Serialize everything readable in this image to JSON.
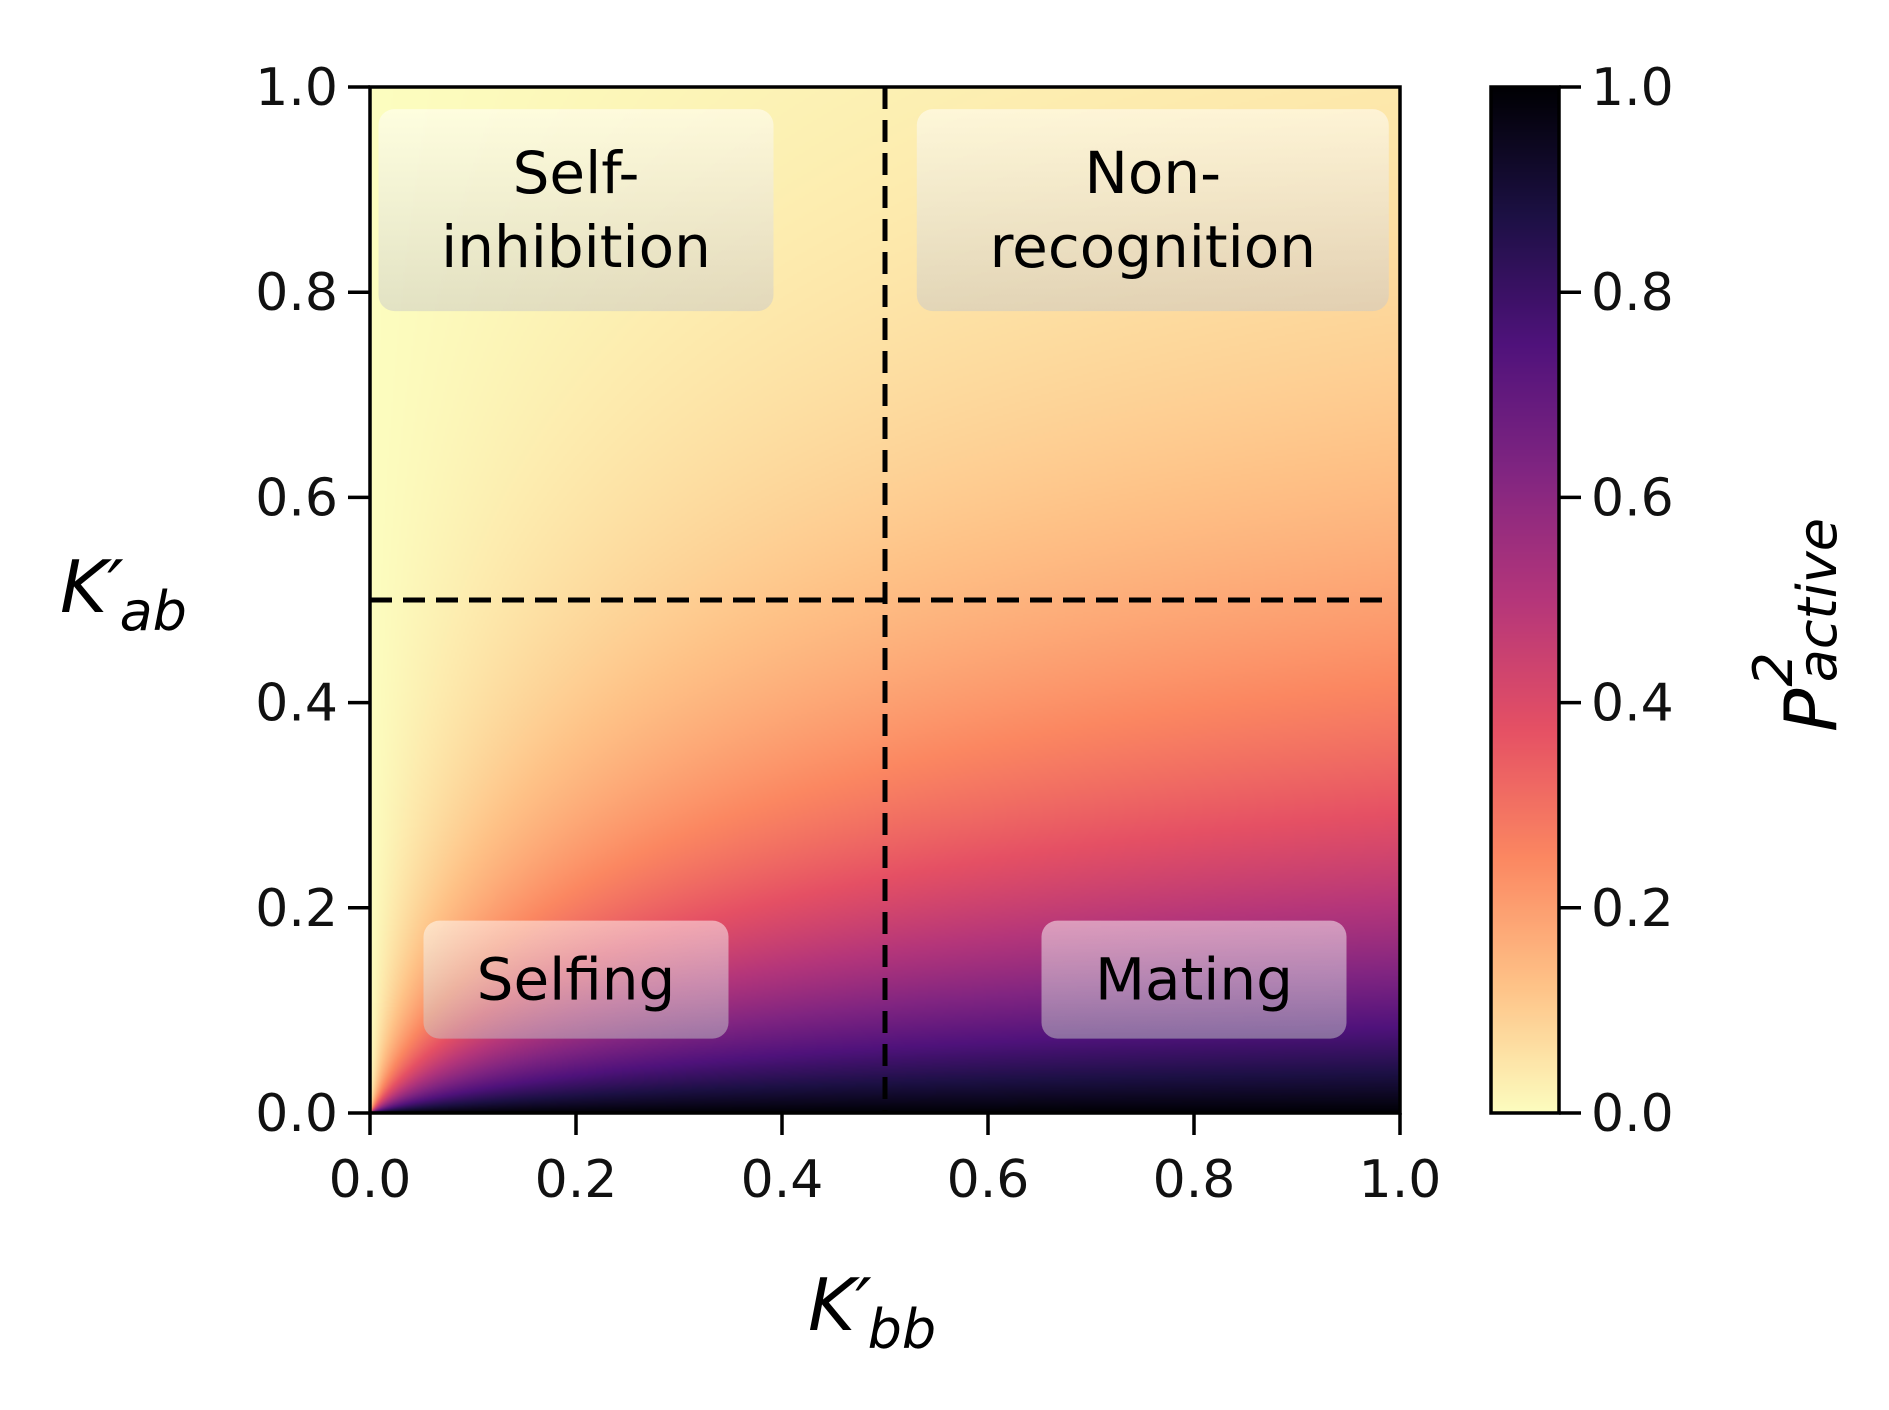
{
  "chart_data": {
    "type": "heatmap",
    "xlabel": {
      "main": "K′",
      "sub": "bb"
    },
    "ylabel": {
      "main": "K′",
      "sub": "ab"
    },
    "colorbar_label": {
      "main": "P",
      "sup": "2",
      "sub": "active"
    },
    "xlim": [
      0.0,
      1.0
    ],
    "ylim": [
      0.0,
      1.0
    ],
    "clim": [
      0.0,
      1.0
    ],
    "colormap": "magma_r",
    "x_ticks": [
      "0.0",
      "0.2",
      "0.4",
      "0.6",
      "0.8",
      "1.0"
    ],
    "y_ticks": [
      "0.0",
      "0.2",
      "0.4",
      "0.6",
      "0.8",
      "1.0"
    ],
    "colorbar_ticks": [
      "0.0",
      "0.2",
      "0.4",
      "0.6",
      "0.8",
      "1.0"
    ],
    "x_tick_values": [
      0.0,
      0.2,
      0.4,
      0.6,
      0.8,
      1.0
    ],
    "y_tick_values": [
      0.0,
      0.2,
      0.4,
      0.6,
      0.8,
      1.0
    ],
    "threshold_lines": [
      {
        "orientation": "vertical",
        "value": 0.5,
        "style": "dashed"
      },
      {
        "orientation": "horizontal",
        "value": 0.5,
        "style": "dashed"
      }
    ],
    "regions": [
      {
        "name": "self-inhibition",
        "lines": [
          "Self-",
          "inhibition"
        ],
        "x": 0.2,
        "y": 0.88
      },
      {
        "name": "non-recognition",
        "lines": [
          "Non-",
          "recognition"
        ],
        "x": 0.76,
        "y": 0.88
      },
      {
        "name": "selfing",
        "lines": [
          "Selfing"
        ],
        "x": 0.2,
        "y": 0.13
      },
      {
        "name": "mating",
        "lines": [
          "Mating"
        ],
        "x": 0.8,
        "y": 0.13
      }
    ]
  },
  "colors": {
    "region_box_top": "#ffffff",
    "region_box_bottom": "#c8c8c8",
    "dashed_line": "#000000",
    "axes": "#000000"
  }
}
